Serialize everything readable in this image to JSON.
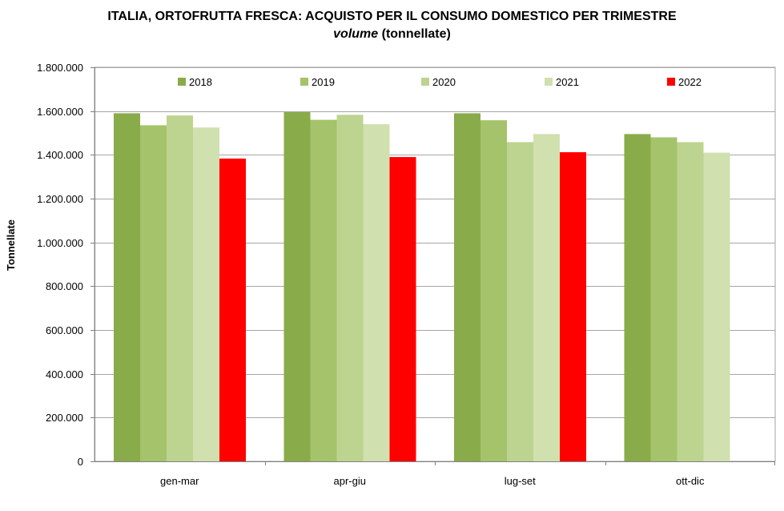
{
  "chart_data": {
    "type": "bar",
    "title_main": "ITALIA, ORTOFRUTTA  FRESCA: ACQUISTO PER IL CONSUMO DOMESTICO PER TRIMESTRE",
    "title_sub_italic": "volume",
    "title_sub_rest": " (tonnellate)",
    "ylabel": "Tonnellate",
    "xlabel": "",
    "ylim": [
      0,
      1800000
    ],
    "ytick_step": 200000,
    "ytick_labels": [
      "0",
      "200.000",
      "400.000",
      "600.000",
      "800.000",
      "1.000.000",
      "1.200.000",
      "1.400.000",
      "1.600.000",
      "1.800.000"
    ],
    "categories": [
      "gen-mar",
      "apr-giu",
      "lug-set",
      "ott-dic"
    ],
    "series": [
      {
        "name": "2018",
        "color": "#8aab4a",
        "values": [
          1590000,
          1595000,
          1590000,
          1495000
        ]
      },
      {
        "name": "2019",
        "color": "#a4c36a",
        "values": [
          1535000,
          1560000,
          1558000,
          1480000
        ]
      },
      {
        "name": "2020",
        "color": "#bdd490",
        "values": [
          1580000,
          1583000,
          1458000,
          1458000
        ]
      },
      {
        "name": "2021",
        "color": "#d0e0ae",
        "values": [
          1525000,
          1540000,
          1495000,
          1410000
        ]
      },
      {
        "name": "2022",
        "color": "#ff0000",
        "values": [
          1383000,
          1390000,
          1412000,
          null
        ]
      }
    ],
    "grid": true,
    "legend_position": "top-inside"
  }
}
